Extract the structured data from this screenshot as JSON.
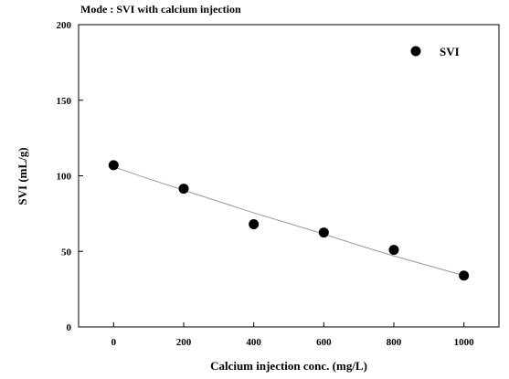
{
  "chart_data": {
    "type": "scatter",
    "title": "Mode : SVI with calcium injection",
    "xlabel": "Calcium injection conc. (mg/L)",
    "ylabel": "SVI (mL/g)",
    "xlim": [
      -100,
      1100
    ],
    "ylim": [
      0,
      200
    ],
    "xticks": [
      0,
      200,
      400,
      600,
      800,
      1000
    ],
    "yticks": [
      0,
      50,
      100,
      150,
      200
    ],
    "grid": false,
    "legend_position": "top-right",
    "series": [
      {
        "name": "SVI",
        "marker": "filled-circle",
        "color": "#000000",
        "x": [
          0,
          200,
          400,
          600,
          800,
          1000
        ],
        "y": [
          107,
          91.5,
          68,
          62.5,
          51,
          34
        ]
      }
    ],
    "trendline": {
      "type": "curve",
      "color": "#9a9a9a",
      "x": [
        0,
        100,
        200,
        300,
        400,
        500,
        600,
        700,
        800,
        900,
        1000
      ],
      "y": [
        106,
        98,
        90.5,
        83,
        75.5,
        68.5,
        61.5,
        54,
        47,
        40.5,
        34
      ]
    }
  }
}
